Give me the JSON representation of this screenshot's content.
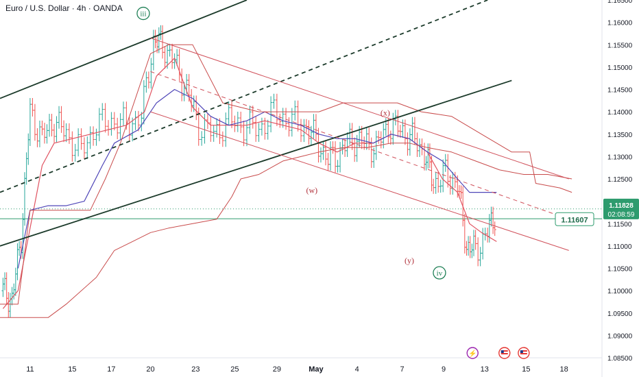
{
  "chart_title": "Euro / U.S. Dollar · 4h · OANDA",
  "chart_data": {
    "type": "line",
    "title": "Euro / U.S. Dollar · 4h · OANDA",
    "xlabel": "",
    "ylabel": "",
    "ylim": [
      1.085,
      1.165
    ],
    "y_ticks": [
      "1.16500",
      "1.16000",
      "1.15500",
      "1.15000",
      "1.14500",
      "1.14000",
      "1.13500",
      "1.13000",
      "1.12500",
      "1.12000",
      "1.11500",
      "1.11000",
      "1.10500",
      "1.10000",
      "1.09500",
      "1.09000",
      "1.08500"
    ],
    "x_ticks": [
      {
        "label": "11",
        "pos": 0.05
      },
      {
        "label": "15",
        "pos": 0.12
      },
      {
        "label": "17",
        "pos": 0.185
      },
      {
        "label": "20",
        "pos": 0.25
      },
      {
        "label": "23",
        "pos": 0.325
      },
      {
        "label": "25",
        "pos": 0.39
      },
      {
        "label": "29",
        "pos": 0.46
      },
      {
        "label": "May",
        "pos": 0.525
      },
      {
        "label": "4",
        "pos": 0.593
      },
      {
        "label": "7",
        "pos": 0.668
      },
      {
        "label": "9",
        "pos": 0.737
      },
      {
        "label": "13",
        "pos": 0.805
      },
      {
        "label": "15",
        "pos": 0.874
      },
      {
        "label": "18",
        "pos": 0.937
      }
    ],
    "series": [
      {
        "role": "close",
        "points": [
          [
            0.005,
            1.1
          ],
          [
            0.02,
            1.098
          ],
          [
            0.035,
            1.112
          ],
          [
            0.05,
            1.14
          ],
          [
            0.07,
            1.134
          ],
          [
            0.09,
            1.138
          ],
          [
            0.11,
            1.135
          ],
          [
            0.135,
            1.131
          ],
          [
            0.16,
            1.137
          ],
          [
            0.185,
            1.138
          ],
          [
            0.21,
            1.137
          ],
          [
            0.235,
            1.139
          ],
          [
            0.255,
            1.156
          ],
          [
            0.27,
            1.155
          ],
          [
            0.29,
            1.151
          ],
          [
            0.31,
            1.145
          ],
          [
            0.33,
            1.137
          ],
          [
            0.355,
            1.135
          ],
          [
            0.38,
            1.138
          ],
          [
            0.405,
            1.137
          ],
          [
            0.43,
            1.136
          ],
          [
            0.455,
            1.14
          ],
          [
            0.48,
            1.138
          ],
          [
            0.505,
            1.137
          ],
          [
            0.525,
            1.134
          ],
          [
            0.545,
            1.129
          ],
          [
            0.565,
            1.131
          ],
          [
            0.585,
            1.134
          ],
          [
            0.605,
            1.133
          ],
          [
            0.625,
            1.132
          ],
          [
            0.645,
            1.137
          ],
          [
            0.665,
            1.136
          ],
          [
            0.685,
            1.134
          ],
          [
            0.705,
            1.131
          ],
          [
            0.72,
            1.124
          ],
          [
            0.74,
            1.126
          ],
          [
            0.76,
            1.124
          ],
          [
            0.775,
            1.11
          ],
          [
            0.79,
            1.109
          ],
          [
            0.81,
            1.113
          ],
          [
            0.825,
            1.118
          ]
        ]
      },
      {
        "role": "ma_red",
        "points": [
          [
            0.005,
            1.096
          ],
          [
            0.03,
            1.1
          ],
          [
            0.05,
            1.114
          ],
          [
            0.07,
            1.128
          ],
          [
            0.09,
            1.133
          ],
          [
            0.12,
            1.134
          ],
          [
            0.15,
            1.135
          ],
          [
            0.18,
            1.136
          ],
          [
            0.21,
            1.137
          ],
          [
            0.24,
            1.14
          ],
          [
            0.26,
            1.148
          ],
          [
            0.29,
            1.152
          ],
          [
            0.32,
            1.141
          ],
          [
            0.35,
            1.137
          ],
          [
            0.38,
            1.137
          ],
          [
            0.41,
            1.137
          ],
          [
            0.44,
            1.138
          ],
          [
            0.47,
            1.137
          ],
          [
            0.5,
            1.136
          ],
          [
            0.53,
            1.133
          ],
          [
            0.56,
            1.131
          ],
          [
            0.59,
            1.133
          ],
          [
            0.62,
            1.133
          ],
          [
            0.65,
            1.135
          ],
          [
            0.68,
            1.134
          ],
          [
            0.71,
            1.131
          ],
          [
            0.735,
            1.125
          ],
          [
            0.76,
            1.122
          ],
          [
            0.78,
            1.115
          ],
          [
            0.8,
            1.113
          ],
          [
            0.825,
            1.111
          ]
        ]
      },
      {
        "role": "ma_blue",
        "points": [
          [
            0.03,
            1.105
          ],
          [
            0.05,
            1.118
          ],
          [
            0.08,
            1.119
          ],
          [
            0.11,
            1.119
          ],
          [
            0.14,
            1.12
          ],
          [
            0.17,
            1.128
          ],
          [
            0.19,
            1.133
          ],
          [
            0.23,
            1.136
          ],
          [
            0.26,
            1.142
          ],
          [
            0.29,
            1.145
          ],
          [
            0.32,
            1.143
          ],
          [
            0.35,
            1.139
          ],
          [
            0.38,
            1.137
          ],
          [
            0.41,
            1.138
          ],
          [
            0.44,
            1.14
          ],
          [
            0.47,
            1.138
          ],
          [
            0.5,
            1.137
          ],
          [
            0.53,
            1.135
          ],
          [
            0.56,
            1.134
          ],
          [
            0.59,
            1.134
          ],
          [
            0.62,
            1.133
          ],
          [
            0.65,
            1.135
          ],
          [
            0.68,
            1.134
          ],
          [
            0.71,
            1.131
          ],
          [
            0.735,
            1.129
          ],
          [
            0.76,
            1.125
          ],
          [
            0.78,
            1.122
          ],
          [
            0.8,
            1.122
          ],
          [
            0.825,
            1.122
          ]
        ]
      },
      {
        "role": "cloud_upper",
        "points": [
          [
            0.0,
            1.097
          ],
          [
            0.03,
            1.097
          ],
          [
            0.05,
            1.118
          ],
          [
            0.09,
            1.118
          ],
          [
            0.15,
            1.118
          ],
          [
            0.175,
            1.125
          ],
          [
            0.2,
            1.133
          ],
          [
            0.25,
            1.153
          ],
          [
            0.28,
            1.155
          ],
          [
            0.32,
            1.155
          ],
          [
            0.37,
            1.142
          ],
          [
            0.43,
            1.14
          ],
          [
            0.48,
            1.14
          ],
          [
            0.53,
            1.14
          ],
          [
            0.57,
            1.142
          ],
          [
            0.61,
            1.142
          ],
          [
            0.66,
            1.142
          ],
          [
            0.7,
            1.14
          ],
          [
            0.75,
            1.139
          ],
          [
            0.8,
            1.135
          ],
          [
            0.85,
            1.131
          ],
          [
            0.88,
            1.131
          ],
          [
            0.89,
            1.124
          ],
          [
            0.93,
            1.123
          ],
          [
            0.95,
            1.122
          ]
        ]
      },
      {
        "role": "cloud_lower",
        "points": [
          [
            0.0,
            1.094
          ],
          [
            0.08,
            1.094
          ],
          [
            0.11,
            1.097
          ],
          [
            0.16,
            1.103
          ],
          [
            0.19,
            1.109
          ],
          [
            0.22,
            1.111
          ],
          [
            0.25,
            1.113
          ],
          [
            0.28,
            1.114
          ],
          [
            0.32,
            1.115
          ],
          [
            0.36,
            1.116
          ],
          [
            0.385,
            1.121
          ],
          [
            0.4,
            1.125
          ],
          [
            0.43,
            1.126
          ],
          [
            0.47,
            1.129
          ],
          [
            0.5,
            1.13
          ],
          [
            0.53,
            1.131
          ],
          [
            0.57,
            1.132
          ],
          [
            0.61,
            1.132
          ],
          [
            0.65,
            1.133
          ],
          [
            0.68,
            1.133
          ],
          [
            0.71,
            1.132
          ],
          [
            0.75,
            1.131
          ],
          [
            0.79,
            1.129
          ],
          [
            0.83,
            1.127
          ],
          [
            0.87,
            1.126
          ],
          [
            0.91,
            1.126
          ],
          [
            0.95,
            1.125
          ]
        ]
      }
    ],
    "trend_lines": [
      {
        "from": [
          0.0,
          1.143
        ],
        "to": [
          0.41,
          1.165
        ],
        "style": "solid",
        "color": "#1b3a2a"
      },
      {
        "from": [
          0.0,
          1.11
        ],
        "to": [
          0.85,
          1.147
        ],
        "style": "solid",
        "color": "#1b3a2a"
      },
      {
        "from": [
          0.0,
          1.122
        ],
        "to": [
          0.81,
          1.165
        ],
        "style": "dashed",
        "color": "#1b3a2a"
      },
      {
        "from": [
          0.25,
          1.1565
        ],
        "to": [
          0.945,
          1.125
        ],
        "style": "solid",
        "color": "#d0505a"
      },
      {
        "from": [
          0.25,
          1.14
        ],
        "to": [
          0.945,
          1.109
        ],
        "style": "solid",
        "color": "#d0505a"
      },
      {
        "from": [
          0.25,
          1.149
        ],
        "to": [
          0.945,
          1.116
        ],
        "style": "dashed",
        "color": "#d0505a"
      }
    ],
    "horizontal_lines": [
      {
        "value": 1.1183,
        "style": "dotted",
        "color": "#2e9b6e"
      },
      {
        "value": 1.1161,
        "style": "solid",
        "color": "#2e9b6e"
      }
    ],
    "wave_labels": [
      {
        "text": "iii",
        "x": 0.238,
        "y": 1.162,
        "circled": true,
        "color": "#1e7f55"
      },
      {
        "text": "(x)",
        "x": 0.64,
        "y": 1.1398,
        "circled": false,
        "color": "#b0303a"
      },
      {
        "text": "(w)",
        "x": 0.518,
        "y": 1.1225,
        "circled": false,
        "color": "#b0303a"
      },
      {
        "text": "(y)",
        "x": 0.68,
        "y": 1.1068,
        "circled": false,
        "color": "#b0303a"
      },
      {
        "text": "iv",
        "x": 0.73,
        "y": 1.104,
        "circled": true,
        "color": "#1e7f55"
      }
    ],
    "price_tags": [
      {
        "role": "current",
        "price": "1.11828",
        "time": "02:08:59",
        "value": 1.11828,
        "color": "#2e9b6e"
      },
      {
        "role": "line",
        "price": "1.11607",
        "value": 1.11607,
        "color": "#2e9b6e"
      }
    ],
    "colors": {
      "up": "#26a69a",
      "down": "#ef5350",
      "ma_red": "#e05260",
      "ma_blue": "#4f46b8",
      "cloud_line": "#c84a4a",
      "axis_text": "#131722"
    }
  },
  "event_icons": [
    {
      "name": "lightning-event-icon",
      "glyph": "⚡",
      "pos": 0.785,
      "color": "#9c27b0"
    },
    {
      "name": "us-flag-event-icon",
      "glyph": "",
      "pos": 0.838,
      "color": "#e53935"
    },
    {
      "name": "us-flag-event-icon-2",
      "glyph": "",
      "pos": 0.87,
      "color": "#e53935"
    }
  ]
}
